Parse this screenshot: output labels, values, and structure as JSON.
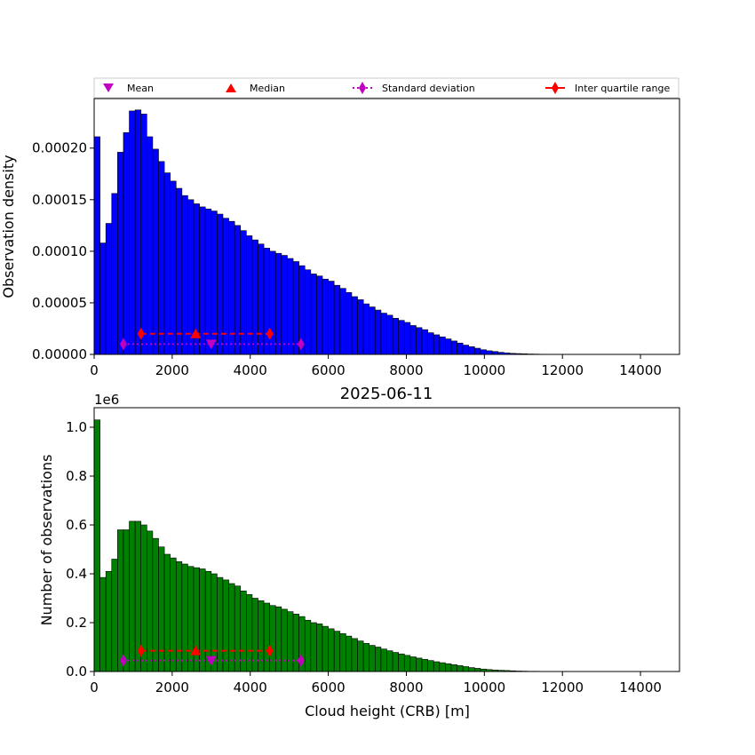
{
  "figure": {
    "title": "2025-06-11"
  },
  "legend": {
    "items": [
      {
        "label": "Mean",
        "marker": "triangle-down",
        "color": "#bf00bf"
      },
      {
        "label": "Median",
        "marker": "triangle-up",
        "color": "#ff0000"
      },
      {
        "label": "Standard deviation",
        "marker": "thin-diamond",
        "color": "#bf00bf",
        "linestyle": "dotted"
      },
      {
        "label": "Inter quartile range",
        "marker": "thin-diamond",
        "color": "#ff0000",
        "linestyle": "solid"
      }
    ]
  },
  "chart_data": [
    {
      "type": "bar",
      "histogram": true,
      "bin_width": 150,
      "bin_start": 0,
      "ylabel": "Observation density",
      "xlabel": "",
      "xlim": [
        0,
        15000
      ],
      "ylim": [
        0,
        0.000248
      ],
      "xticks": [
        0,
        2000,
        4000,
        6000,
        8000,
        10000,
        12000,
        14000
      ],
      "xtick_labels": [
        "0",
        "2000",
        "4000",
        "6000",
        "8000",
        "10000",
        "12000",
        "14000"
      ],
      "yticks": [
        0,
        5e-05,
        0.0001,
        0.00015,
        0.0002
      ],
      "ytick_labels": [
        "0.00000",
        "0.00005",
        "0.00010",
        "0.00015",
        "0.00020"
      ],
      "bar_color": "#0000ff",
      "values": [
        0.000211,
        0.000108,
        0.000127,
        0.000156,
        0.000196,
        0.000215,
        0.000236,
        0.000237,
        0.000233,
        0.000211,
        0.000199,
        0.000187,
        0.000176,
        0.000168,
        0.000161,
        0.000154,
        0.00015,
        0.000146,
        0.000143,
        0.000141,
        0.000139,
        0.000136,
        0.000132,
        0.000129,
        0.000125,
        0.00012,
        0.000115,
        0.000111,
        0.000107,
        0.000103,
        0.0001,
        9.8e-05,
        9.6e-05,
        9.3e-05,
        9e-05,
        8.6e-05,
        8.2e-05,
        7.8e-05,
        7.6e-05,
        7.3e-05,
        7.1e-05,
        6.7e-05,
        6.4e-05,
        6e-05,
        5.6e-05,
        5.3e-05,
        4.9e-05,
        4.6e-05,
        4.3e-05,
        4e-05,
        3.8e-05,
        3.5e-05,
        3.3e-05,
        3.1e-05,
        2.8e-05,
        2.6e-05,
        2.4e-05,
        2.1e-05,
        1.9e-05,
        1.7e-05,
        1.5e-05,
        1.3e-05,
        1.1e-05,
        9e-06,
        7.5e-06,
        6e-06,
        4.5e-06,
        3.5e-06,
        2.8e-06,
        2e-06,
        1.5e-06,
        1e-06,
        8e-07,
        6e-07,
        4e-07,
        3e-07,
        2e-07,
        1.5e-07,
        1e-07,
        1e-07,
        5e-08,
        5e-08,
        5e-08,
        5e-08,
        5e-08,
        0,
        0,
        0,
        0,
        0,
        0,
        0,
        0,
        0,
        0,
        0,
        0,
        0,
        0,
        0
      ],
      "stats": {
        "mean": {
          "x": 3000,
          "y": 1e-05
        },
        "median": {
          "x": 2600,
          "y": 2e-05
        },
        "std_range": [
          750,
          5300
        ],
        "std_y": 1e-05,
        "iqr_range": [
          1200,
          4500
        ],
        "iqr_y": 2e-05
      }
    },
    {
      "type": "bar",
      "histogram": true,
      "bin_width": 150,
      "bin_start": 0,
      "title": "2025-06-11",
      "ylabel": "Number of observations",
      "xlabel": "Cloud height (CRB) [m]",
      "offset_text": "1e6",
      "xlim": [
        0,
        15000
      ],
      "ylim": [
        0,
        1.08
      ],
      "xticks": [
        0,
        2000,
        4000,
        6000,
        8000,
        10000,
        12000,
        14000
      ],
      "xtick_labels": [
        "0",
        "2000",
        "4000",
        "6000",
        "8000",
        "10000",
        "12000",
        "14000"
      ],
      "yticks": [
        0,
        0.2,
        0.4,
        0.6,
        0.8,
        1.0
      ],
      "ytick_labels": [
        "0.0",
        "0.2",
        "0.4",
        "0.6",
        "0.8",
        "1.0"
      ],
      "bar_color": "#008000",
      "values": [
        1.03,
        0.385,
        0.41,
        0.46,
        0.58,
        0.58,
        0.615,
        0.615,
        0.6,
        0.575,
        0.545,
        0.51,
        0.48,
        0.465,
        0.45,
        0.44,
        0.43,
        0.425,
        0.42,
        0.41,
        0.4,
        0.385,
        0.375,
        0.36,
        0.35,
        0.33,
        0.315,
        0.3,
        0.29,
        0.28,
        0.27,
        0.265,
        0.255,
        0.245,
        0.235,
        0.225,
        0.21,
        0.2,
        0.195,
        0.185,
        0.175,
        0.165,
        0.155,
        0.145,
        0.135,
        0.125,
        0.115,
        0.107,
        0.1,
        0.092,
        0.085,
        0.078,
        0.072,
        0.066,
        0.06,
        0.055,
        0.05,
        0.045,
        0.04,
        0.036,
        0.032,
        0.028,
        0.024,
        0.02,
        0.016,
        0.013,
        0.01,
        0.008,
        0.006,
        0.005,
        0.004,
        0.003,
        0.002,
        0.0015,
        0.001,
        0.001,
        0.0005,
        0.0005,
        0.0005,
        0.0005,
        0.0003,
        0.0003,
        0.0003,
        0.0003,
        0.0003,
        0,
        0,
        0,
        0,
        0,
        0,
        0,
        0,
        0,
        0,
        0,
        0,
        0,
        0,
        0
      ],
      "stats": {
        "mean": {
          "x": 3000,
          "y": 0.045
        },
        "median": {
          "x": 2600,
          "y": 0.085
        },
        "std_range": [
          750,
          5300
        ],
        "std_y": 0.045,
        "iqr_range": [
          1200,
          4500
        ],
        "iqr_y": 0.085
      }
    }
  ]
}
